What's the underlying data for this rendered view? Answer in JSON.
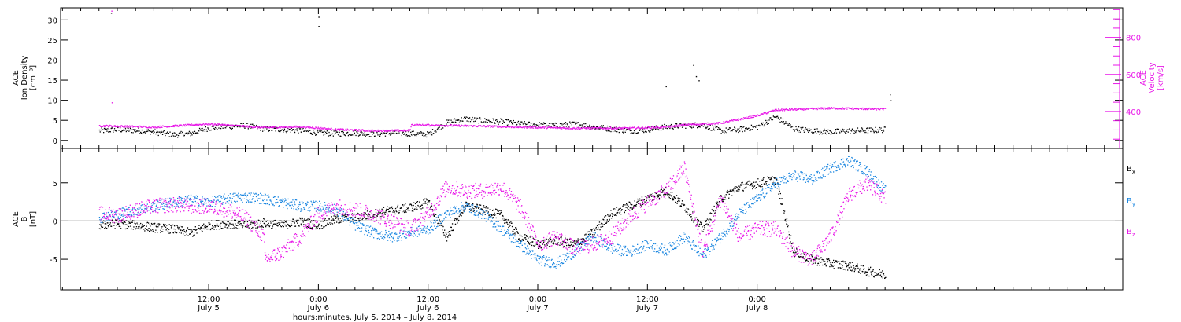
{
  "chart_data": [
    {
      "panel": "plasma",
      "type": "scatter",
      "left_axis": {
        "label_lines": [
          "ACE",
          "Ion Density",
          "[cm⁻³]"
        ],
        "ylim": [
          -2,
          33
        ],
        "ticks": [
          "0",
          "5",
          "10",
          "15",
          "20",
          "25",
          "30"
        ],
        "tick_values": [
          0,
          5,
          10,
          15,
          20,
          25,
          30
        ],
        "color": "#000000"
      },
      "right_axis": {
        "label_lines": [
          "ACE",
          "Velocity",
          "[km/s]"
        ],
        "ylim": [
          200,
          960
        ],
        "ticks": [
          "400",
          "600",
          "800"
        ],
        "tick_values": [
          400,
          600,
          800
        ],
        "color": "#e817e8"
      },
      "series": [
        {
          "key": "density",
          "color": "#000000",
          "axis": "left",
          "x_hours": [
            0,
            2,
            4,
            6,
            8,
            10,
            12,
            14,
            16,
            18,
            20,
            22,
            24,
            26,
            28,
            30,
            32,
            34,
            36,
            38,
            40,
            42,
            44,
            46,
            48,
            50,
            52,
            54,
            56,
            58,
            60,
            62,
            64,
            66,
            68,
            70,
            72,
            74,
            76,
            78,
            80,
            82,
            84,
            86
          ],
          "y": [
            2.5,
            2.8,
            2.6,
            2.2,
            1.5,
            1.8,
            3.2,
            3.6,
            3.8,
            3.0,
            2.8,
            2.6,
            2.0,
            1.8,
            2.0,
            1.6,
            2.0,
            1.8,
            1.6,
            4.5,
            5.5,
            5.0,
            4.8,
            4.2,
            4.0,
            3.8,
            4.2,
            3.5,
            3.0,
            2.5,
            2.8,
            3.5,
            3.8,
            4.0,
            2.5,
            2.8,
            3.5,
            6.0,
            3.0,
            2.5,
            2.2,
            2.5,
            2.6,
            2.8
          ],
          "noise": 0.7,
          "spikes": [
            [
              1.3,
              31.8
            ],
            [
              24.0,
              30.8
            ],
            [
              24.0,
              28.5
            ],
            [
              62.0,
              13.5
            ],
            [
              65.0,
              18.8
            ],
            [
              65.3,
              16.0
            ],
            [
              65.6,
              15.0
            ],
            [
              86.5,
              11.5
            ],
            [
              86.6,
              10.0
            ]
          ]
        },
        {
          "key": "velocity",
          "color": "#e817e8",
          "axis": "right",
          "x_hours": [
            0,
            6,
            12,
            18,
            22,
            26,
            30,
            34,
            34.1,
            40,
            46,
            52,
            58,
            62,
            64,
            68,
            70,
            72,
            74,
            80,
            86
          ],
          "y": [
            325,
            318,
            335,
            315,
            320,
            305,
            298,
            300,
            330,
            325,
            318,
            312,
            312,
            318,
            330,
            340,
            360,
            380,
            410,
            420,
            415
          ],
          "noise": 5,
          "spikes": [
            [
              1.35,
              945
            ],
            [
              1.38,
              450
            ]
          ]
        }
      ]
    },
    {
      "panel": "magnetic",
      "type": "scatter",
      "left_axis": {
        "label_lines": [
          "ACE",
          "B",
          "[nT]"
        ],
        "ylim": [
          -9,
          9.5
        ],
        "ticks": [
          "-5",
          "0",
          "5"
        ],
        "tick_values": [
          -5,
          0,
          5
        ]
      },
      "zero_line": true,
      "legend_position": "right",
      "series": [
        {
          "name": "B",
          "subscript": "x",
          "color": "#000000",
          "x_hours": [
            0,
            2,
            4,
            6,
            8,
            10,
            12,
            14,
            16,
            18,
            20,
            22,
            24,
            26,
            28,
            30,
            32,
            34,
            36,
            38,
            40,
            42,
            44,
            46,
            48,
            50,
            52,
            54,
            56,
            58,
            60,
            62,
            64,
            66,
            68,
            70,
            72,
            74,
            76,
            78,
            80,
            82,
            84,
            86
          ],
          "y": [
            -0.5,
            -0.3,
            -0.5,
            -0.8,
            -1.0,
            -1.5,
            -0.5,
            -0.3,
            -0.5,
            -0.2,
            -0.5,
            0.0,
            -0.5,
            0.3,
            0.5,
            1.0,
            1.5,
            1.8,
            2.5,
            -2.0,
            2.0,
            1.5,
            0.8,
            -2.0,
            -3.0,
            -2.5,
            -3.0,
            -1.5,
            1.0,
            2.0,
            3.0,
            4.0,
            2.0,
            -1.0,
            3.0,
            4.5,
            5.0,
            5.5,
            -4.0,
            -5.0,
            -5.5,
            -5.8,
            -6.5,
            -7.0
          ],
          "noise": 0.6
        },
        {
          "name": "B",
          "subscript": "y",
          "color": "#1a86e0",
          "x_hours": [
            0,
            2,
            4,
            6,
            8,
            10,
            12,
            14,
            16,
            18,
            20,
            22,
            24,
            26,
            28,
            30,
            32,
            34,
            36,
            38,
            40,
            42,
            44,
            46,
            48,
            50,
            52,
            54,
            56,
            58,
            60,
            62,
            64,
            66,
            68,
            70,
            72,
            74,
            76,
            78,
            80,
            82,
            84,
            86
          ],
          "y": [
            0.5,
            1.0,
            1.5,
            2.0,
            2.5,
            2.8,
            2.5,
            3.0,
            3.2,
            3.0,
            2.5,
            2.0,
            2.0,
            1.5,
            -0.5,
            -1.5,
            -2.0,
            -1.5,
            -1.0,
            1.0,
            2.0,
            1.0,
            -1.0,
            -3.0,
            -5.0,
            -5.5,
            -4.0,
            -2.0,
            -3.5,
            -4.0,
            -3.0,
            -3.8,
            -2.0,
            -4.5,
            -2.0,
            1.0,
            3.0,
            5.0,
            6.0,
            5.5,
            7.0,
            8.0,
            6.5,
            4.0
          ],
          "noise": 0.7
        },
        {
          "name": "B",
          "subscript": "z",
          "color": "#e817e8",
          "x_hours": [
            0,
            2,
            4,
            6,
            8,
            10,
            12,
            14,
            16,
            18,
            18.1,
            20,
            22,
            24,
            26,
            28,
            30,
            32,
            34,
            36,
            38,
            40,
            42,
            44,
            46,
            48,
            50,
            52,
            54,
            56,
            58,
            60,
            62,
            64,
            66,
            68,
            70,
            72,
            74,
            76,
            78,
            80,
            82,
            84,
            86
          ],
          "y": [
            1.0,
            0.8,
            1.5,
            2.0,
            2.2,
            2.0,
            2.0,
            1.5,
            0.5,
            -2.0,
            -5.0,
            -4.0,
            -2.0,
            1.0,
            2.0,
            1.5,
            1.0,
            0.0,
            -1.0,
            1.0,
            4.5,
            4.0,
            4.0,
            4.5,
            2.0,
            -3.0,
            -2.0,
            -3.5,
            -3.0,
            -2.0,
            0.5,
            2.5,
            4.0,
            7.0,
            -4.0,
            3.0,
            -2.0,
            -1.0,
            -1.0,
            -4.0,
            -5.0,
            -2.0,
            3.5,
            5.0,
            3.0
          ],
          "noise": 1.0
        }
      ]
    }
  ],
  "time_axis": {
    "start_hour": -4.2,
    "end_hour": 112.0,
    "major_ticks": [
      {
        "hour": 12,
        "time": "12:00",
        "date": "July 5"
      },
      {
        "hour": 24,
        "time": "0:00",
        "date": "July 6"
      },
      {
        "hour": 36,
        "time": "12:00",
        "date": "July 6"
      },
      {
        "hour": 48,
        "time": "0:00",
        "date": "July 7"
      },
      {
        "hour": 60,
        "time": "12:00",
        "date": "July 7"
      },
      {
        "hour": 72,
        "time": "0:00",
        "date": "July 8"
      }
    ],
    "minor_tick_interval_hours": 2,
    "xlabel": "hours:minutes, July  5, 2014 – July  8, 2014"
  }
}
